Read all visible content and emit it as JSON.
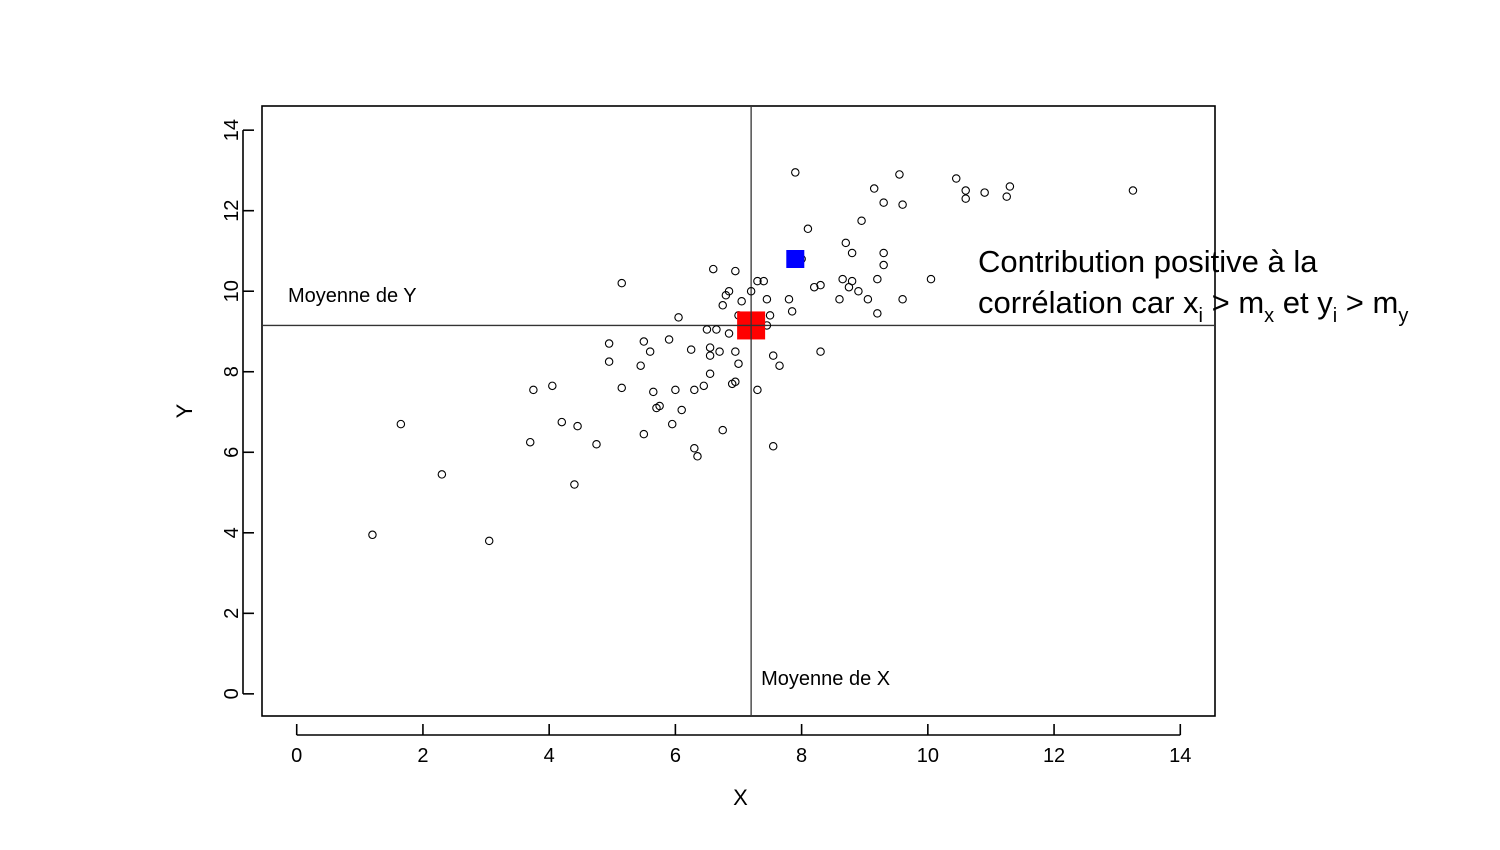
{
  "chart_data": {
    "type": "scatter",
    "title": "",
    "xlabel": "X",
    "ylabel": "Y",
    "xlim": [
      -0.55,
      14.55
    ],
    "ylim": [
      -0.55,
      14.6
    ],
    "xticks": [
      0,
      2,
      4,
      6,
      8,
      10,
      12,
      14
    ],
    "yticks": [
      0,
      2,
      4,
      6,
      8,
      10,
      12,
      14
    ],
    "grid": false,
    "means": {
      "x": 7.2,
      "y": 9.15
    },
    "mean_labels": {
      "x": "Moyenne de X",
      "y": "Moyenne de Y"
    },
    "highlight_mean": {
      "x": 7.2,
      "y": 9.15,
      "color": "#ff0000"
    },
    "highlight_point": {
      "x": 7.9,
      "y": 10.8,
      "color": "#0000ff"
    },
    "annotation": {
      "line1": "Contribution positive à la",
      "line2_parts": [
        "corrélation car x",
        "i",
        " > m",
        "x",
        " et y",
        "i",
        " > m",
        "y"
      ]
    },
    "points": [
      [
        1.2,
        3.95
      ],
      [
        1.65,
        6.7
      ],
      [
        2.3,
        5.45
      ],
      [
        3.05,
        3.8
      ],
      [
        3.7,
        6.25
      ],
      [
        3.75,
        7.55
      ],
      [
        4.05,
        7.65
      ],
      [
        4.2,
        6.75
      ],
      [
        4.4,
        5.2
      ],
      [
        4.45,
        6.65
      ],
      [
        4.75,
        6.2
      ],
      [
        4.95,
        8.7
      ],
      [
        4.95,
        8.25
      ],
      [
        5.15,
        7.6
      ],
      [
        5.15,
        10.2
      ],
      [
        5.45,
        8.15
      ],
      [
        5.5,
        8.75
      ],
      [
        5.5,
        6.45
      ],
      [
        5.6,
        8.5
      ],
      [
        5.65,
        7.5
      ],
      [
        5.7,
        7.1
      ],
      [
        5.75,
        7.15
      ],
      [
        5.9,
        8.8
      ],
      [
        5.95,
        6.7
      ],
      [
        6.0,
        7.55
      ],
      [
        6.05,
        9.35
      ],
      [
        6.1,
        7.05
      ],
      [
        6.25,
        8.55
      ],
      [
        6.3,
        7.55
      ],
      [
        6.3,
        6.1
      ],
      [
        6.35,
        5.9
      ],
      [
        6.45,
        7.65
      ],
      [
        6.5,
        9.05
      ],
      [
        6.55,
        7.95
      ],
      [
        6.55,
        8.4
      ],
      [
        6.55,
        8.6
      ],
      [
        6.6,
        10.55
      ],
      [
        6.65,
        9.05
      ],
      [
        6.7,
        8.5
      ],
      [
        6.75,
        9.65
      ],
      [
        6.75,
        6.55
      ],
      [
        6.8,
        9.9
      ],
      [
        6.85,
        8.95
      ],
      [
        6.85,
        10.0
      ],
      [
        6.9,
        7.7
      ],
      [
        6.95,
        7.75
      ],
      [
        6.95,
        8.5
      ],
      [
        6.95,
        10.5
      ],
      [
        7.0,
        9.4
      ],
      [
        7.0,
        8.2
      ],
      [
        7.05,
        9.75
      ],
      [
        7.2,
        10.0
      ],
      [
        7.3,
        10.25
      ],
      [
        7.3,
        7.55
      ],
      [
        7.4,
        10.25
      ],
      [
        7.45,
        9.8
      ],
      [
        7.45,
        9.15
      ],
      [
        7.5,
        9.4
      ],
      [
        7.55,
        8.4
      ],
      [
        7.55,
        6.15
      ],
      [
        7.65,
        8.15
      ],
      [
        7.8,
        9.8
      ],
      [
        7.85,
        9.5
      ],
      [
        7.9,
        12.95
      ],
      [
        8.0,
        10.8
      ],
      [
        8.1,
        11.55
      ],
      [
        8.2,
        10.1
      ],
      [
        8.3,
        10.15
      ],
      [
        8.3,
        8.5
      ],
      [
        8.6,
        9.8
      ],
      [
        8.65,
        10.3
      ],
      [
        8.7,
        11.2
      ],
      [
        8.75,
        10.1
      ],
      [
        8.8,
        10.25
      ],
      [
        8.8,
        10.95
      ],
      [
        8.9,
        10.0
      ],
      [
        8.95,
        11.75
      ],
      [
        9.05,
        9.8
      ],
      [
        9.15,
        12.55
      ],
      [
        9.2,
        10.3
      ],
      [
        9.2,
        9.45
      ],
      [
        9.3,
        12.2
      ],
      [
        9.3,
        10.95
      ],
      [
        9.3,
        10.65
      ],
      [
        9.55,
        12.9
      ],
      [
        9.6,
        12.15
      ],
      [
        9.6,
        9.8
      ],
      [
        10.05,
        10.3
      ],
      [
        10.45,
        12.8
      ],
      [
        10.6,
        12.3
      ],
      [
        10.6,
        12.5
      ],
      [
        10.9,
        12.45
      ],
      [
        11.25,
        12.35
      ],
      [
        11.3,
        12.6
      ],
      [
        13.25,
        12.5
      ]
    ]
  }
}
